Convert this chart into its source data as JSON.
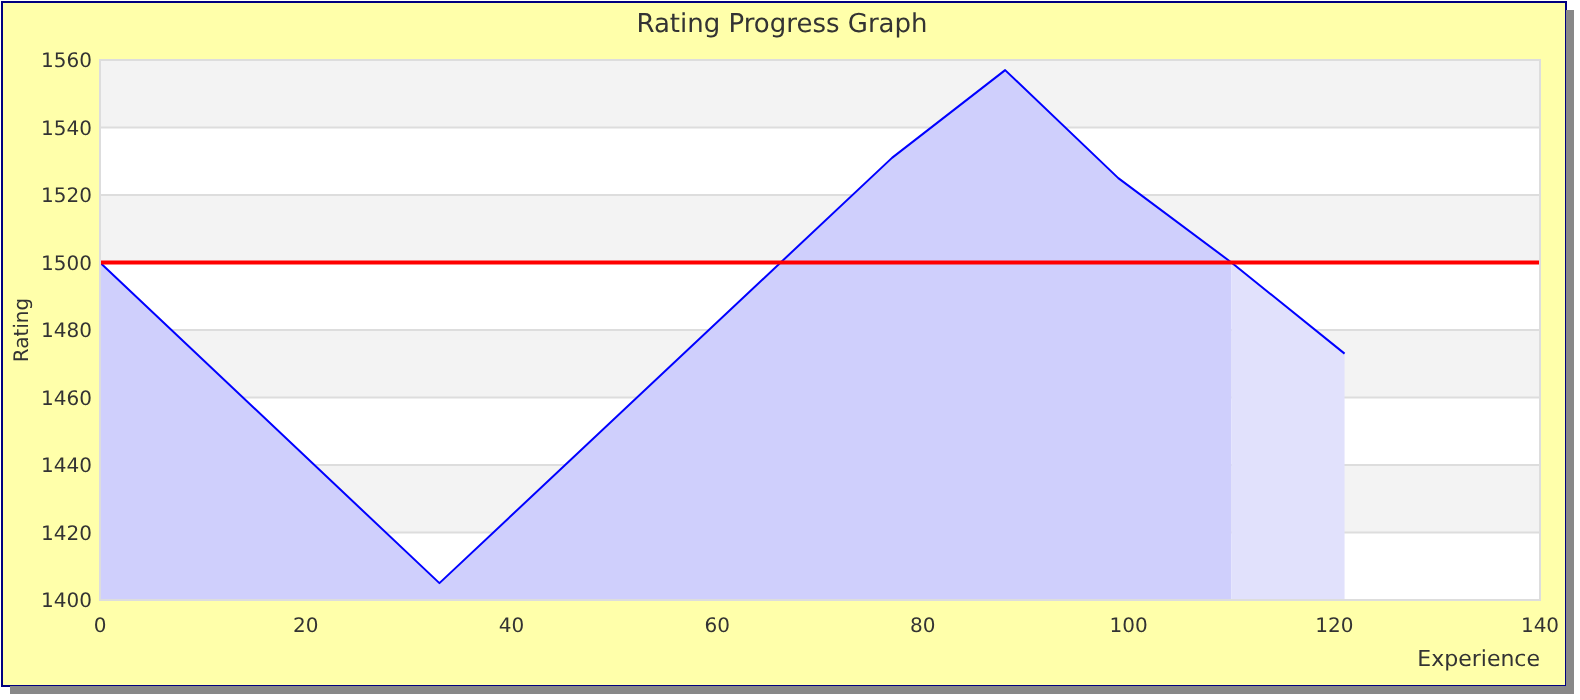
{
  "chart_data": {
    "type": "area",
    "title": "Rating Progress Graph",
    "xlabel": "Experience",
    "ylabel": "Rating",
    "xlim": [
      0,
      140
    ],
    "xticks": [
      0,
      20,
      40,
      60,
      80,
      100,
      120,
      140
    ],
    "ylim": [
      1400,
      1560
    ],
    "yticks": [
      1400,
      1420,
      1440,
      1460,
      1480,
      1500,
      1520,
      1540,
      1560
    ],
    "grid": "y",
    "series": [
      {
        "color": "#cfcffc",
        "x": [
          0,
          33,
          77,
          88,
          99,
          110
        ],
        "values": [
          1500,
          1405,
          1531,
          1557,
          1525,
          1500
        ]
      },
      {
        "color": "#e1e1fc",
        "x": [
          110,
          121
        ],
        "values": [
          1500,
          1473
        ]
      },
      {
        "type": "line",
        "color": "#0000ff",
        "x": [
          0,
          33,
          77,
          88,
          99,
          110,
          121
        ],
        "values": [
          1500,
          1405,
          1531,
          1557,
          1525,
          1500,
          1473
        ]
      }
    ],
    "ref_lines": [
      {
        "axis": "y",
        "value": 1500,
        "color": "#ff0000"
      }
    ]
  }
}
